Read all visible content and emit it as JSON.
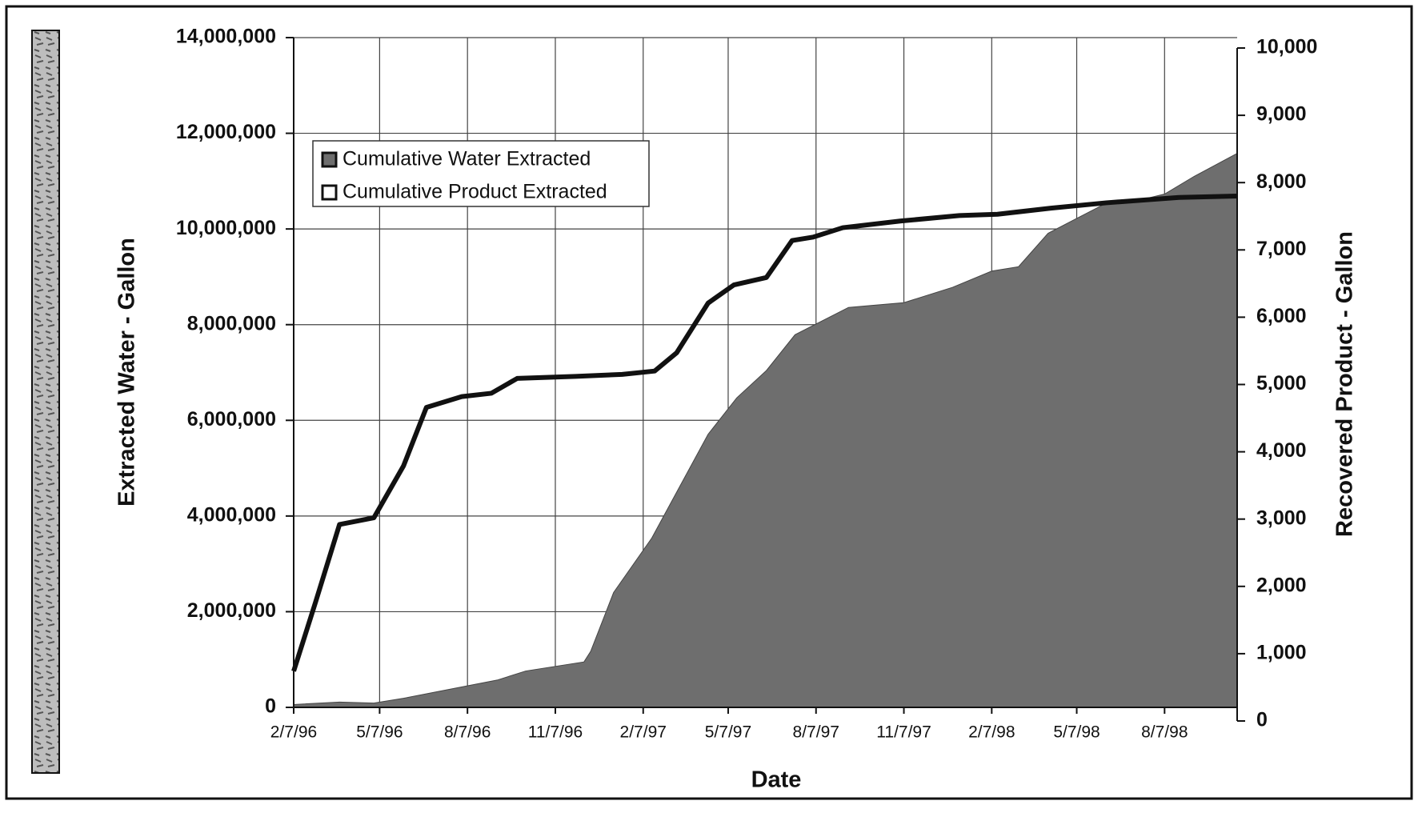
{
  "chart_data": {
    "type": "area-line",
    "x_label": "Date",
    "y_label": "Extracted Water - Gallon",
    "y2_label": "Recovered Product - Gallon",
    "x": [
      "1996-02-07",
      "1996-03-01",
      "1996-03-26",
      "1996-05-01",
      "1996-06-01",
      "1996-06-25",
      "1996-07-07",
      "1996-08-01",
      "1996-09-01",
      "1996-09-07",
      "1996-09-28",
      "1996-10-07",
      "1996-11-28",
      "1996-12-07",
      "1996-12-14",
      "1997-01-07",
      "1997-01-16",
      "1997-02-16",
      "1997-02-19",
      "1997-03-14",
      "1997-04-16",
      "1997-05-13",
      "1997-05-16",
      "1997-06-16",
      "1997-07-13",
      "1997-07-16",
      "1997-08-04",
      "1997-09-04",
      "1997-09-10",
      "1997-11-04",
      "1997-11-07",
      "1997-12-28",
      "1998-01-04",
      "1998-02-07",
      "1998-02-13",
      "1998-03-07",
      "1998-04-07",
      "1998-04-10",
      "1998-05-07",
      "1998-06-07",
      "1998-07-07",
      "1998-08-07",
      "1998-08-22",
      "1998-09-07",
      "1998-10-22"
    ],
    "series": [
      {
        "name": "Cumulative Water Extracted",
        "color": "#6e6e6e",
        "kind": "area",
        "values": [
          60000,
          null,
          110000,
          90000,
          190000,
          null,
          330000,
          null,
          null,
          570000,
          null,
          760000,
          null,
          950000,
          1170000,
          2400000,
          null,
          3540000,
          null,
          null,
          5710000,
          null,
          6470000,
          7040000,
          null,
          7790000,
          null,
          null,
          8360000,
          null,
          8460000,
          8780000,
          null,
          9120000,
          null,
          9210000,
          9910000,
          null,
          10220000,
          10540000,
          10580000,
          10730000,
          null,
          11100000,
          11580000
        ]
      },
      {
        "name": "Cumulative Product Extracted",
        "color": "#111111",
        "kind": "line",
        "axis": "y2",
        "values": [
          740,
          1770,
          2920,
          3020,
          3790,
          4660,
          null,
          4820,
          4870,
          null,
          5090,
          null,
          5120,
          null,
          null,
          null,
          5150,
          null,
          5200,
          5470,
          6210,
          6480,
          null,
          6590,
          7140,
          null,
          7190,
          7330,
          null,
          7430,
          null,
          null,
          7510,
          null,
          7530,
          null,
          null,
          7620,
          null,
          7700,
          null,
          null,
          7780,
          null,
          7800
        ]
      }
    ],
    "xlim": [
      "1996-02-07",
      "1998-10-22"
    ],
    "xticks": [
      {
        "value": "1996-02-07",
        "label": "2/7/96"
      },
      {
        "value": "1996-05-07",
        "label": "5/7/96"
      },
      {
        "value": "1996-08-07",
        "label": "8/7/96"
      },
      {
        "value": "1996-11-07",
        "label": "11/7/96"
      },
      {
        "value": "1997-02-07",
        "label": "2/7/97"
      },
      {
        "value": "1997-05-07",
        "label": "5/7/97"
      },
      {
        "value": "1997-08-07",
        "label": "8/7/97"
      },
      {
        "value": "1997-11-07",
        "label": "11/7/97"
      },
      {
        "value": "1998-02-07",
        "label": "2/7/98"
      },
      {
        "value": "1998-05-07",
        "label": "5/7/98"
      },
      {
        "value": "1998-08-07",
        "label": "8/7/98"
      }
    ],
    "ylim": [
      0,
      14000000
    ],
    "yticks": [
      0,
      {
        "value": 2000000,
        "label": "2,000,000"
      },
      {
        "value": 4000000,
        "label": "4,000,000"
      },
      {
        "value": 6000000,
        "label": "6,000,000"
      },
      {
        "value": 8000000,
        "label": "8,000,000"
      },
      {
        "value": 10000000,
        "label": "10,000,000"
      },
      {
        "value": 12000000,
        "label": "12,000,000"
      },
      {
        "value": 14000000,
        "label": "14,000,000"
      }
    ],
    "y2lim": [
      0,
      10000
    ],
    "y2ticks": [
      0,
      {
        "value": 1000,
        "label": "1,000"
      },
      {
        "value": 2000,
        "label": "2,000"
      },
      {
        "value": 3000,
        "label": "3,000"
      },
      {
        "value": 4000,
        "label": "4,000"
      },
      {
        "value": 5000,
        "label": "5,000"
      },
      {
        "value": 6000,
        "label": "6,000"
      },
      {
        "value": 7000,
        "label": "7,000"
      },
      {
        "value": 8000,
        "label": "8,000"
      },
      {
        "value": 9000,
        "label": "9,000"
      },
      {
        "value": 10000,
        "label": "10,000"
      }
    ],
    "grid": true,
    "legend": "upper-left"
  }
}
